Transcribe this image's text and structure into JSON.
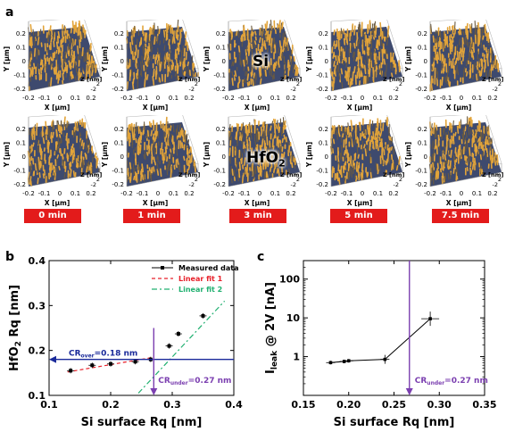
{
  "panel_a": {
    "letter": "a",
    "rows": [
      {
        "material": "Si",
        "material_sub": ""
      },
      {
        "material": "HfO",
        "material_sub": "2"
      }
    ],
    "axis_text": {
      "y_ticks": [
        "0.2",
        "0.1",
        "0",
        "-0.1",
        "-0.2"
      ],
      "x_ticks": [
        "-0.2",
        "-0.1",
        "0",
        "0.1",
        "0.2"
      ],
      "y_label": "Y [μm]",
      "x_label": "X [μm]",
      "z_label": "Z [nm]",
      "z_ticks": [
        "2",
        "0",
        "-2"
      ]
    },
    "times": [
      "0 min",
      "1 min",
      "3 min",
      "5 min",
      "7.5 min"
    ],
    "colors": {
      "surface_light": "#e2a43a",
      "surface_dark": "#3e4a6e",
      "badge": "#e31b1b"
    }
  },
  "panel_b": {
    "letter": "b",
    "chart_data": {
      "type": "scatter",
      "xlabel": "Si surface Rq [nm]",
      "ylabel_main": "HfO",
      "ylabel_sub": "2",
      "ylabel_rest": " Rq [nm]",
      "xlim": [
        0.1,
        0.4
      ],
      "ylim": [
        0.1,
        0.4
      ],
      "x_ticks": [
        "0.1",
        "0.2",
        "0.3",
        "0.4"
      ],
      "y_ticks": [
        "0.1",
        "0.2",
        "0.3",
        "0.4"
      ],
      "series": [
        {
          "name": "Measured data",
          "x": [
            0.135,
            0.17,
            0.2,
            0.24,
            0.265,
            0.295,
            0.31,
            0.35
          ],
          "y": [
            0.155,
            0.167,
            0.17,
            0.175,
            0.18,
            0.21,
            0.237,
            0.277
          ]
        },
        {
          "name": "Linear fit 1",
          "x": [
            0.13,
            0.27
          ],
          "y": [
            0.152,
            0.185
          ]
        },
        {
          "name": "Linear fit 2",
          "x": [
            0.245,
            0.385
          ],
          "y": [
            0.105,
            0.31
          ]
        }
      ],
      "annotations": {
        "cr_over_label": "CR",
        "cr_over_sub": "over",
        "cr_over_value": "=0.18  nm",
        "cr_over_y": 0.18,
        "cr_under_label": "CR",
        "cr_under_sub": "under",
        "cr_under_value": "=0.27  nm",
        "cr_under_x": 0.27
      },
      "legend_position": "top-right",
      "colors": {
        "data": "#000000",
        "fit1": "#e8202a",
        "fit2": "#20b070",
        "cr_over": "#1a2a9a",
        "cr_under": "#7b3fb0"
      }
    }
  },
  "panel_c": {
    "letter": "c",
    "chart_data": {
      "type": "line",
      "xlabel": "Si surface Rq [nm]",
      "ylabel_main": "I",
      "ylabel_sub": "leak",
      "ylabel_rest": " @ 2V [nA]",
      "xlim": [
        0.15,
        0.35
      ],
      "ylim_log": [
        0.1,
        300
      ],
      "x_ticks": [
        "0.15",
        "0.20",
        "0.25",
        "0.30",
        "0.35"
      ],
      "y_ticks": [
        "1",
        "10",
        "100"
      ],
      "y_scale": "log",
      "series": [
        {
          "name": "",
          "x": [
            0.18,
            0.195,
            0.2,
            0.24,
            0.29
          ],
          "y": [
            0.7,
            0.75,
            0.78,
            0.85,
            9.5
          ]
        }
      ],
      "annotations": {
        "cr_under_label": "CR",
        "cr_under_sub": "under",
        "cr_under_value": "=0.27  nm",
        "cr_under_x": 0.267
      },
      "colors": {
        "data": "#000000",
        "cr_under": "#7b3fb0"
      }
    }
  }
}
